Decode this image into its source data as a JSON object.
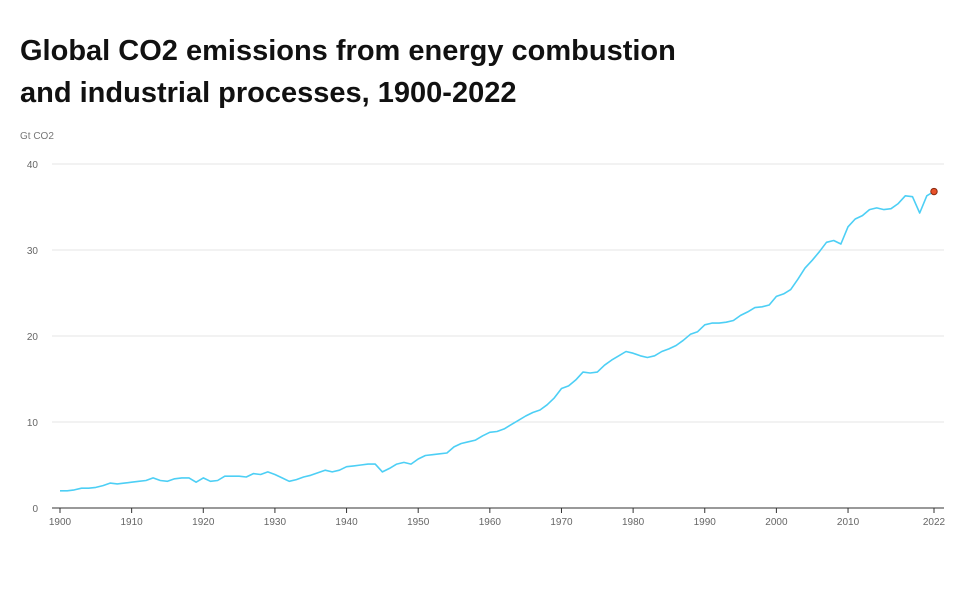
{
  "title": {
    "line1": "Global CO2 emissions from energy combustion",
    "line2": "and industrial processes, 1900-2022"
  },
  "unit_label": "Gt CO2",
  "chart_data": {
    "type": "line",
    "title": "Global CO2 emissions from energy combustion and industrial processes, 1900-2022",
    "xlabel": "",
    "ylabel": "Gt CO2",
    "xlim": [
      1900,
      2022
    ],
    "ylim": [
      0,
      40
    ],
    "x_ticks": [
      1900,
      1910,
      1920,
      1930,
      1940,
      1950,
      1960,
      1970,
      1980,
      1990,
      2000,
      2010,
      2022
    ],
    "y_ticks": [
      0,
      10,
      20,
      30,
      40
    ],
    "grid": "horizontal",
    "line_color": "#4DCFF5",
    "marker_color": "#E8522A",
    "series": [
      {
        "x": [
          1900,
          1901,
          1902,
          1903,
          1904,
          1905,
          1906,
          1907,
          1908,
          1909,
          1910,
          1911,
          1912,
          1913,
          1914,
          1915,
          1916,
          1917,
          1918,
          1919,
          1920,
          1921,
          1922,
          1923,
          1924,
          1925,
          1926,
          1927,
          1928,
          1929,
          1930,
          1931,
          1932,
          1933,
          1934,
          1935,
          1936,
          1937,
          1938,
          1939,
          1940,
          1941,
          1942,
          1943,
          1944,
          1945,
          1946,
          1947,
          1948,
          1949,
          1950,
          1951,
          1952,
          1953,
          1954,
          1955,
          1956,
          1957,
          1958,
          1959,
          1960,
          1961,
          1962,
          1963,
          1964,
          1965,
          1966,
          1967,
          1968,
          1969,
          1970,
          1971,
          1972,
          1973,
          1974,
          1975,
          1976,
          1977,
          1978,
          1979,
          1980,
          1981,
          1982,
          1983,
          1984,
          1985,
          1986,
          1987,
          1988,
          1989,
          1990,
          1991,
          1992,
          1993,
          1994,
          1995,
          1996,
          1997,
          1998,
          1999,
          2000,
          2001,
          2002,
          2003,
          2004,
          2005,
          2006,
          2007,
          2008,
          2009,
          2010,
          2011,
          2012,
          2013,
          2014,
          2015,
          2016,
          2017,
          2018,
          2019,
          2020,
          2021,
          2022
        ],
        "y": [
          2.0,
          2.0,
          2.1,
          2.3,
          2.3,
          2.4,
          2.6,
          2.9,
          2.8,
          2.9,
          3.0,
          3.1,
          3.2,
          3.5,
          3.2,
          3.1,
          3.4,
          3.5,
          3.5,
          3.0,
          3.5,
          3.1,
          3.2,
          3.7,
          3.7,
          3.7,
          3.6,
          4.0,
          3.9,
          4.2,
          3.9,
          3.5,
          3.1,
          3.3,
          3.6,
          3.8,
          4.1,
          4.4,
          4.2,
          4.4,
          4.8,
          4.9,
          5.0,
          5.1,
          5.1,
          4.2,
          4.6,
          5.1,
          5.3,
          5.1,
          5.7,
          6.1,
          6.2,
          6.3,
          6.4,
          7.1,
          7.5,
          7.7,
          7.9,
          8.4,
          8.8,
          8.9,
          9.2,
          9.7,
          10.2,
          10.7,
          11.1,
          11.4,
          12.0,
          12.8,
          13.9,
          14.2,
          14.9,
          15.8,
          15.7,
          15.8,
          16.6,
          17.2,
          17.7,
          18.2,
          18.0,
          17.7,
          17.5,
          17.7,
          18.2,
          18.5,
          18.9,
          19.5,
          20.2,
          20.5,
          21.3,
          21.5,
          21.5,
          21.6,
          21.8,
          22.4,
          22.8,
          23.3,
          23.4,
          23.6,
          24.6,
          24.9,
          25.4,
          26.6,
          27.9,
          28.8,
          29.8,
          30.9,
          31.1,
          30.7,
          32.7,
          33.6,
          34.0,
          34.7,
          34.9,
          34.7,
          34.8,
          35.4,
          36.3,
          36.2,
          34.3,
          36.3,
          36.8
        ]
      }
    ]
  }
}
